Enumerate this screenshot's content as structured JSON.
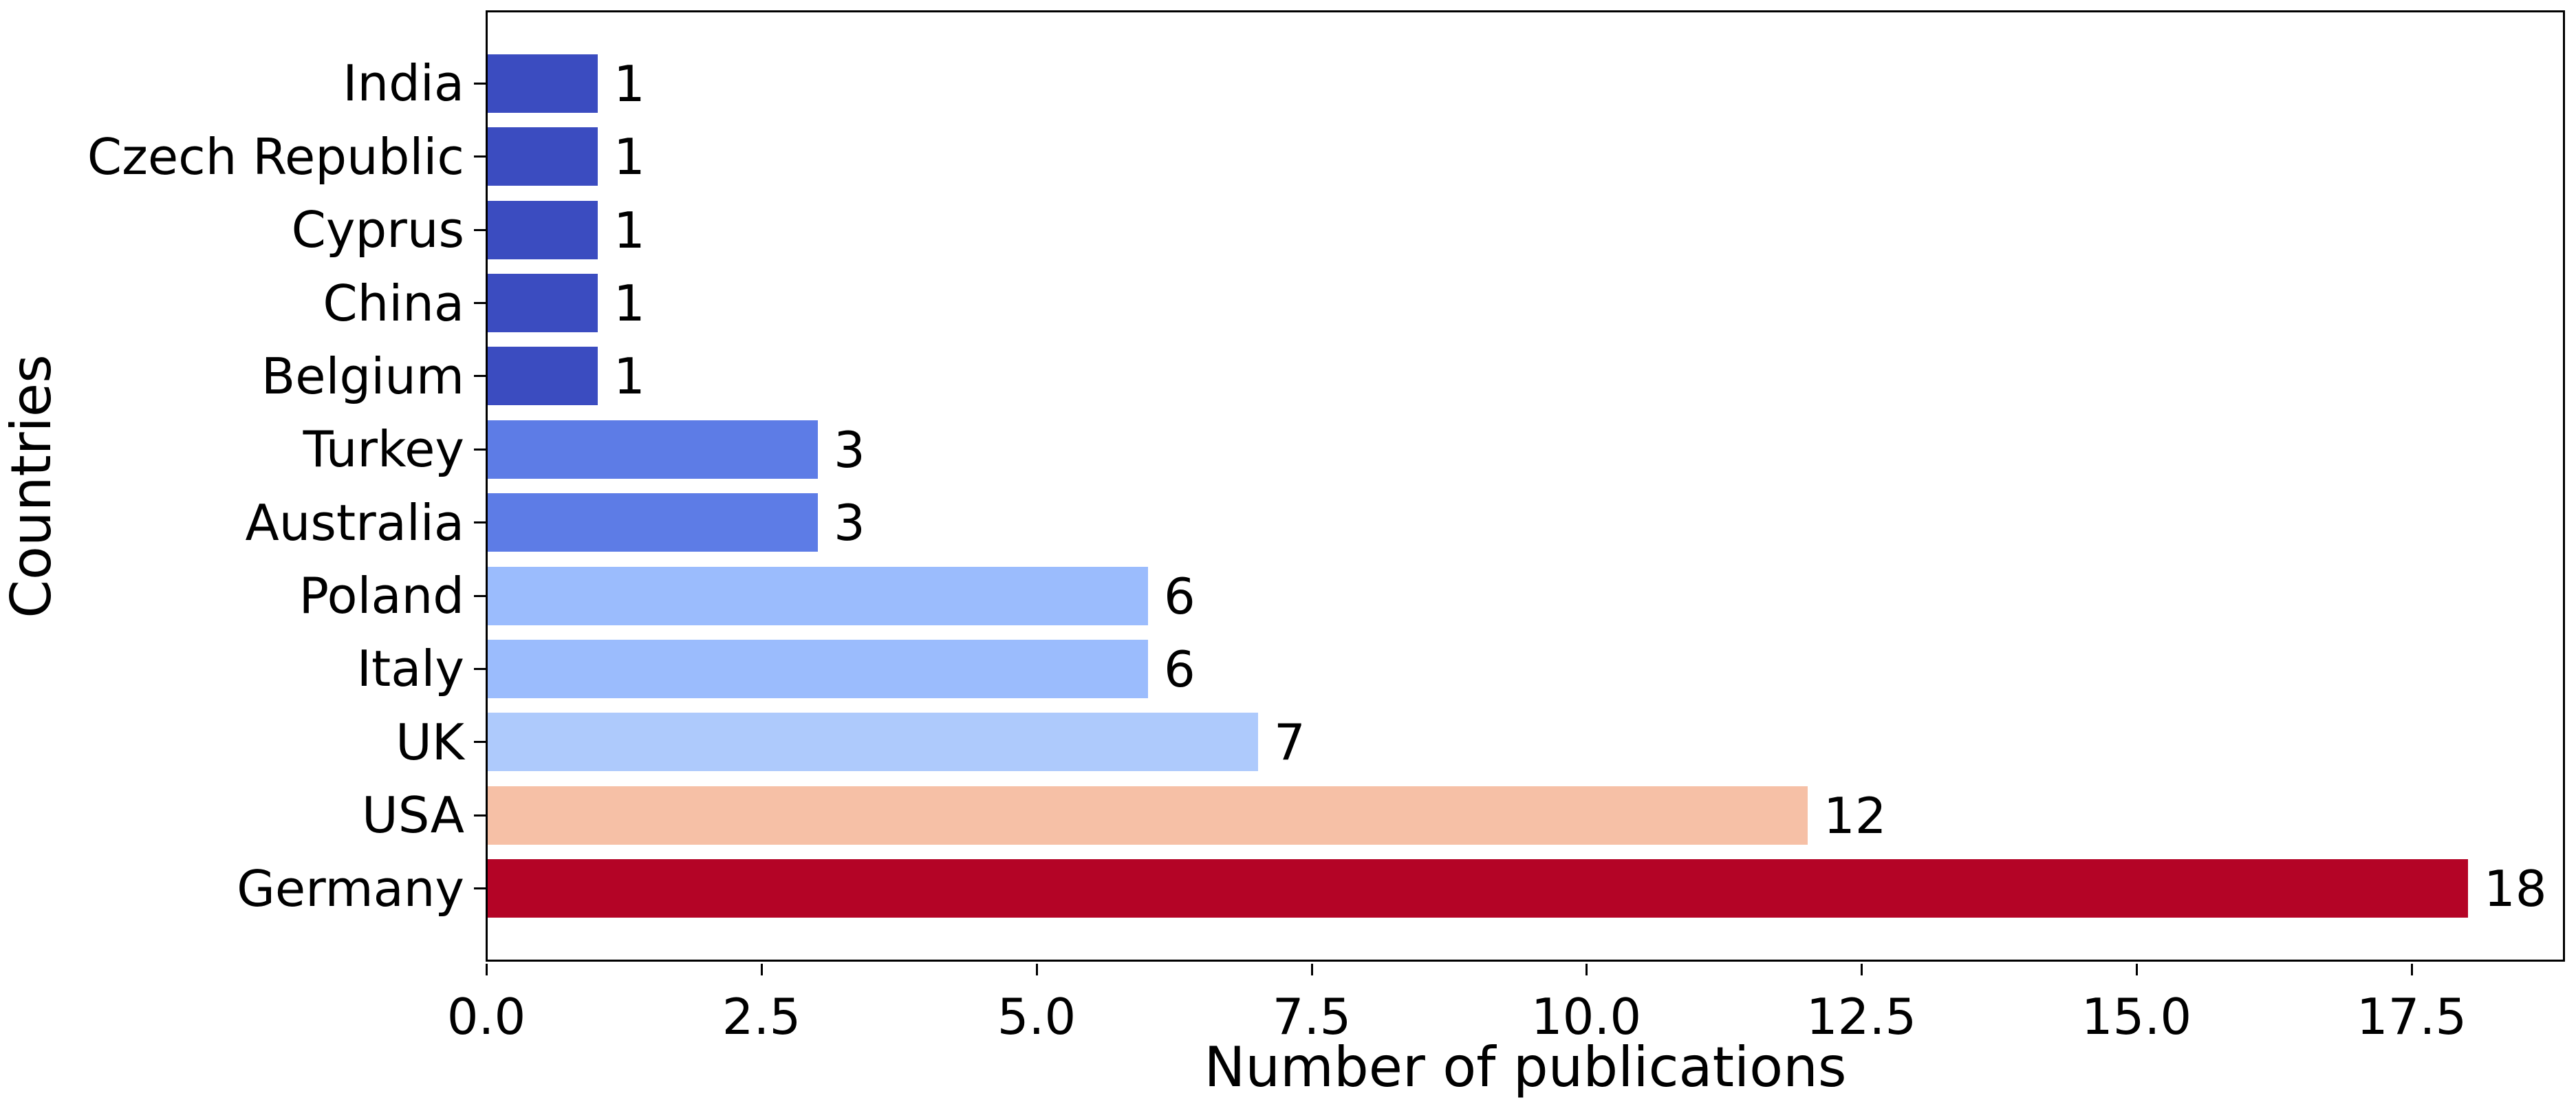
{
  "figure": {
    "xlabel": "Number of publications",
    "ylabel": "Countries"
  },
  "chart_data": {
    "type": "bar",
    "orientation": "horizontal",
    "title": "",
    "xlabel": "Number of publications",
    "ylabel": "Countries",
    "categories": [
      "India",
      "Czech Republic",
      "Cyprus",
      "China",
      "Belgium",
      "Turkey",
      "Australia",
      "Poland",
      "Italy",
      "UK",
      "USA",
      "Germany"
    ],
    "values": [
      1,
      1,
      1,
      1,
      1,
      3,
      3,
      6,
      6,
      7,
      12,
      18
    ],
    "value_labels": [
      "1",
      "1",
      "1",
      "1",
      "1",
      "3",
      "3",
      "6",
      "6",
      "7",
      "12",
      "18"
    ],
    "bar_colors": [
      "#3b4cc0",
      "#3b4cc0",
      "#3b4cc0",
      "#3b4cc0",
      "#3b4cc0",
      "#5d7ce6",
      "#5d7ce6",
      "#9bbcfd",
      "#9bbcfd",
      "#aecafc",
      "#f6c0a6",
      "#b40426"
    ],
    "colormap": "coolwarm",
    "x_ticks": [
      0.0,
      2.5,
      5.0,
      7.5,
      10.0,
      12.5,
      15.0,
      17.5
    ],
    "x_tick_labels": [
      "0.0",
      "2.5",
      "5.0",
      "7.5",
      "10.0",
      "12.5",
      "15.0",
      "17.5"
    ],
    "xlim": [
      0,
      18.9
    ],
    "grid": false,
    "legend": null,
    "frame": "full-box",
    "line_color": "#000000",
    "background_color": "#ffffff"
  }
}
